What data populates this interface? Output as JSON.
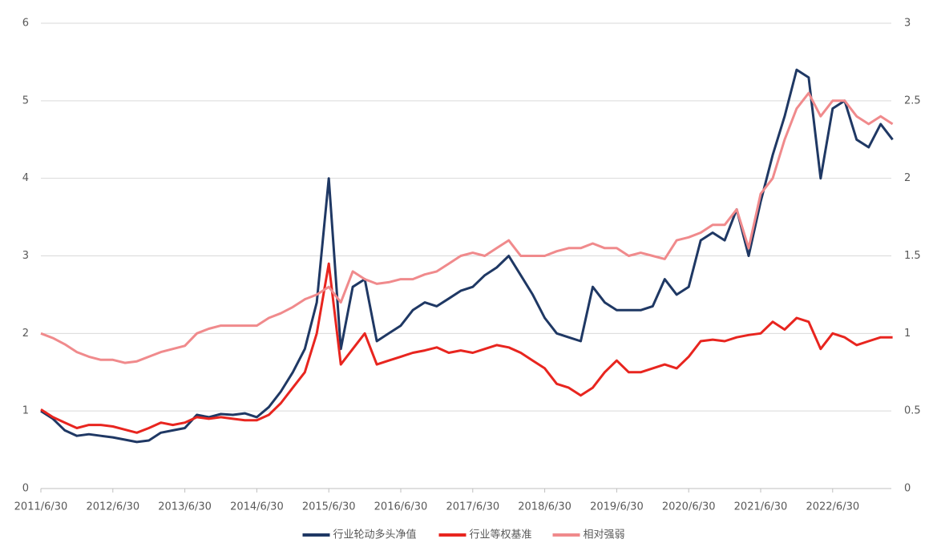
{
  "chart_data": {
    "type": "line",
    "categories": [
      "2011/6/30",
      null,
      null,
      null,
      null,
      null,
      "2012/6/30",
      null,
      null,
      null,
      null,
      null,
      "2013/6/30",
      null,
      null,
      null,
      null,
      null,
      "2014/6/30",
      null,
      null,
      null,
      null,
      null,
      "2015/6/30",
      null,
      null,
      null,
      null,
      null,
      "2016/6/30",
      null,
      null,
      null,
      null,
      null,
      "2017/6/30",
      null,
      null,
      null,
      null,
      null,
      "2018/6/30",
      null,
      null,
      null,
      null,
      null,
      "2019/6/30",
      null,
      null,
      null,
      null,
      null,
      "2020/6/30",
      null,
      null,
      null,
      null,
      null,
      "2021/6/30",
      null,
      null,
      null,
      null,
      null,
      "2022/6/30",
      null,
      null,
      null,
      null,
      null
    ],
    "series": [
      {
        "name": "行业轮动多头净值",
        "color": "#1f3864",
        "values": [
          1.0,
          0.9,
          0.75,
          0.68,
          0.7,
          0.68,
          0.66,
          0.63,
          0.6,
          0.62,
          0.72,
          0.75,
          0.78,
          0.95,
          0.92,
          0.96,
          0.95,
          0.97,
          0.92,
          1.05,
          1.25,
          1.5,
          1.8,
          2.4,
          4.0,
          1.8,
          2.6,
          2.7,
          1.9,
          2.0,
          2.1,
          2.3,
          2.4,
          2.35,
          2.45,
          2.55,
          2.6,
          2.75,
          2.85,
          3.0,
          2.75,
          2.5,
          2.2,
          2.0,
          1.95,
          1.9,
          2.6,
          2.4,
          2.3,
          2.3,
          2.3,
          2.35,
          2.7,
          2.5,
          2.6,
          3.2,
          3.3,
          3.2,
          3.6,
          3.0,
          3.7,
          4.3,
          4.8,
          5.4,
          5.3,
          4.0,
          4.9,
          5.0,
          4.5,
          4.4,
          4.7,
          4.5
        ]
      },
      {
        "name": "行业等权基准",
        "color": "#e8251f",
        "values": [
          1.02,
          0.92,
          0.85,
          0.78,
          0.82,
          0.82,
          0.8,
          0.76,
          0.72,
          0.78,
          0.85,
          0.82,
          0.85,
          0.92,
          0.9,
          0.92,
          0.9,
          0.88,
          0.88,
          0.95,
          1.1,
          1.3,
          1.5,
          2.0,
          2.9,
          1.6,
          1.8,
          2.0,
          1.6,
          1.65,
          1.7,
          1.75,
          1.78,
          1.82,
          1.75,
          1.78,
          1.75,
          1.8,
          1.85,
          1.82,
          1.75,
          1.65,
          1.55,
          1.35,
          1.3,
          1.2,
          1.3,
          1.5,
          1.65,
          1.5,
          1.5,
          1.55,
          1.6,
          1.55,
          1.7,
          1.9,
          1.92,
          1.9,
          1.95,
          1.98,
          2.0,
          2.15,
          2.05,
          2.2,
          2.15,
          1.8,
          2.0,
          1.95,
          1.85,
          1.9,
          1.95,
          1.95
        ]
      },
      {
        "name": "相对强弱",
        "color": "#f08a8c",
        "axis": "y2",
        "values": [
          1.0,
          0.97,
          0.93,
          0.88,
          0.85,
          0.83,
          0.83,
          0.81,
          0.82,
          0.85,
          0.88,
          0.9,
          0.92,
          1.0,
          1.03,
          1.05,
          1.05,
          1.05,
          1.05,
          1.1,
          1.13,
          1.17,
          1.22,
          1.25,
          1.3,
          1.2,
          1.4,
          1.35,
          1.32,
          1.33,
          1.35,
          1.35,
          1.38,
          1.4,
          1.45,
          1.5,
          1.52,
          1.5,
          1.55,
          1.6,
          1.5,
          1.5,
          1.5,
          1.53,
          1.55,
          1.55,
          1.58,
          1.55,
          1.55,
          1.5,
          1.52,
          1.5,
          1.48,
          1.6,
          1.62,
          1.65,
          1.7,
          1.7,
          1.8,
          1.55,
          1.9,
          2.0,
          2.25,
          2.45,
          2.55,
          2.4,
          2.5,
          2.5,
          2.4,
          2.35,
          2.4,
          2.35
        ]
      }
    ],
    "ylim": [
      0,
      6
    ],
    "yticks": [
      0,
      1,
      2,
      3,
      4,
      5,
      6
    ],
    "y2lim": [
      0,
      3
    ],
    "y2ticks": [
      0,
      0.5,
      1,
      1.5,
      2,
      2.5,
      3
    ],
    "grid": true,
    "legend": "bottom"
  }
}
